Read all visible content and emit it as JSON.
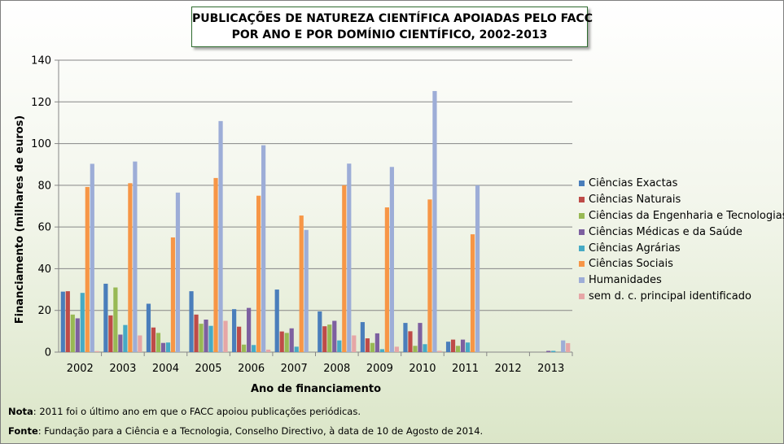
{
  "chart_data": {
    "type": "bar",
    "title_lines": [
      "PUBLICAÇÕES DE NATUREZA CIENTÍFICA APOIADAS PELO FACC",
      "POR ANO E POR DOMÍNIO CIENTÍFICO, 2002-2013"
    ],
    "xlabel": "Ano de financiamento",
    "ylabel": "Financiamento (milhares de euros)",
    "ylim": [
      0,
      140
    ],
    "yticks": [
      0,
      20,
      40,
      60,
      80,
      100,
      120,
      140
    ],
    "grid": "horizontal",
    "legend_position": "right",
    "categories": [
      "2002",
      "2003",
      "2004",
      "2005",
      "2006",
      "2007",
      "2008",
      "2009",
      "2010",
      "2011",
      "2012",
      "2013"
    ],
    "series": [
      {
        "name": "Ciências Exactas",
        "color": "#4a7ebb",
        "values": [
          29,
          32.8,
          23.2,
          29.2,
          20.6,
          30,
          19.5,
          14.4,
          14,
          5,
          0,
          0
        ]
      },
      {
        "name": "Ciências Naturais",
        "color": "#be4b48",
        "values": [
          29.2,
          17.6,
          11.8,
          18,
          12.2,
          9.9,
          12.4,
          6.6,
          10,
          6,
          0,
          0
        ]
      },
      {
        "name": "Ciências da Engenharia e Tecnologias",
        "color": "#98b954",
        "values": [
          18,
          31,
          9.2,
          13.6,
          3.6,
          9.2,
          13.2,
          4.4,
          3,
          3,
          0,
          0
        ]
      },
      {
        "name": "Ciências Médicas e da Saúde",
        "color": "#7d60a0",
        "values": [
          16.2,
          8.4,
          4.4,
          15.6,
          21.2,
          11.4,
          15,
          9,
          14,
          6,
          0,
          0.6
        ]
      },
      {
        "name": "Ciências Agrárias",
        "color": "#46aac5",
        "values": [
          28.4,
          13,
          4.6,
          12.6,
          3.4,
          2.6,
          5.6,
          1.4,
          3.8,
          4.6,
          0,
          0.6
        ]
      },
      {
        "name": "Ciências Sociais",
        "color": "#f79646",
        "values": [
          79.2,
          81,
          55,
          83.5,
          75,
          65.5,
          80,
          69.4,
          73.2,
          56.5,
          0,
          0
        ]
      },
      {
        "name": "Humanidades",
        "color": "#9dadd7",
        "values": [
          90.3,
          91.4,
          76.5,
          110.8,
          99.2,
          58.6,
          90.4,
          88.8,
          125.2,
          80,
          0,
          5.6
        ]
      },
      {
        "name": "sem d. c. principal identificado",
        "color": "#e6a6a6",
        "values": [
          0.5,
          8,
          0,
          15,
          1.2,
          0,
          8,
          2.6,
          0.6,
          0,
          0,
          4.3
        ]
      }
    ]
  },
  "notes": {
    "note_label": "Nota",
    "note_text": ": 2011 foi o último ano em que o FACC apoiou publicações periódicas.",
    "source_label": "Fonte",
    "source_text": ": Fundação para a Ciência e a Tecnologia, Conselho Directivo, à data de 10 de Agosto de 2014."
  }
}
